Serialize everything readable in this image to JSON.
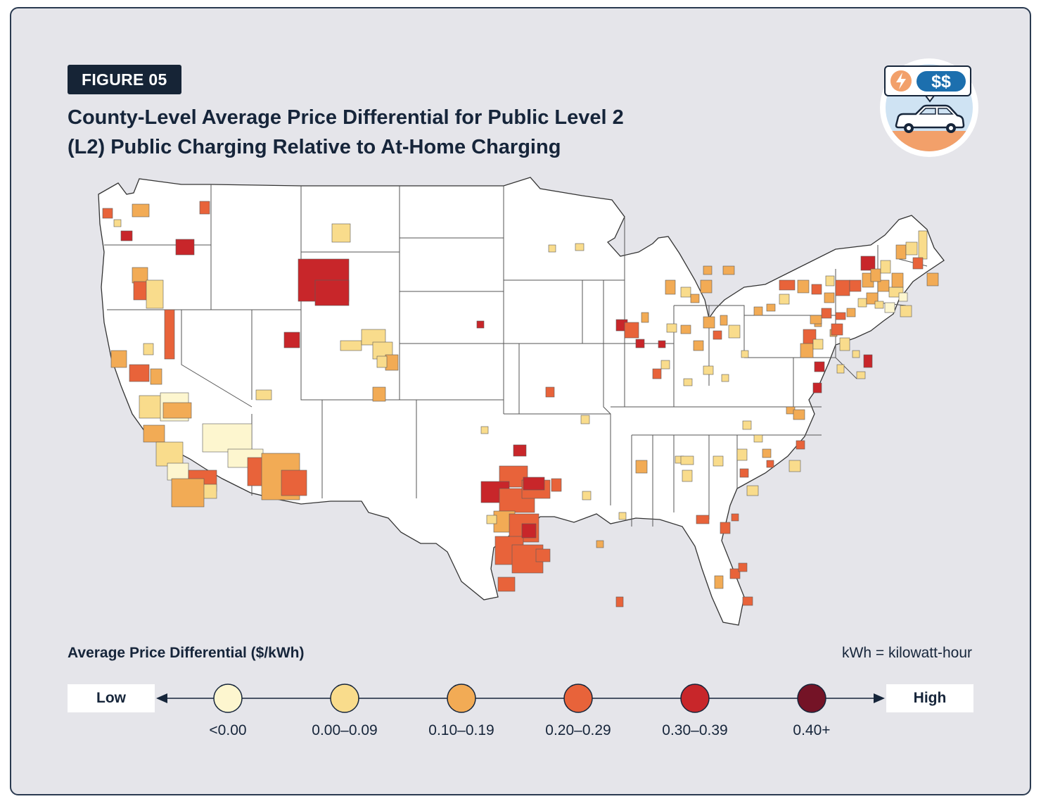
{
  "figure": {
    "badge": "FIGURE 05",
    "title_line1": "County-Level Average Price Differential for Public Level 2",
    "title_line2": "(L2) Public Charging Relative to At-Home Charging"
  },
  "logo": {
    "icons": [
      "lightning-icon",
      "dollar-icon",
      "car-icon"
    ],
    "dollar_text": "$$"
  },
  "legend": {
    "title": "Average Price Differential ($/kWh)",
    "note": "kWh = kilowatt-hour",
    "low_label": "Low",
    "high_label": "High",
    "bins": [
      {
        "label": "<0.00",
        "color": "#fdf6cf"
      },
      {
        "label": "0.00–0.09",
        "color": "#f9dc8c"
      },
      {
        "label": "0.10–0.19",
        "color": "#f2ab55"
      },
      {
        "label": "0.20–0.29",
        "color": "#e8633a"
      },
      {
        "label": "0.30–0.39",
        "color": "#c8262a"
      },
      {
        "label": "0.40+",
        "color": "#741326"
      }
    ]
  },
  "colors": {
    "background": "#e5e5ea",
    "badge": "#162436",
    "land": "#ffffff",
    "state_border": "#444444"
  }
}
